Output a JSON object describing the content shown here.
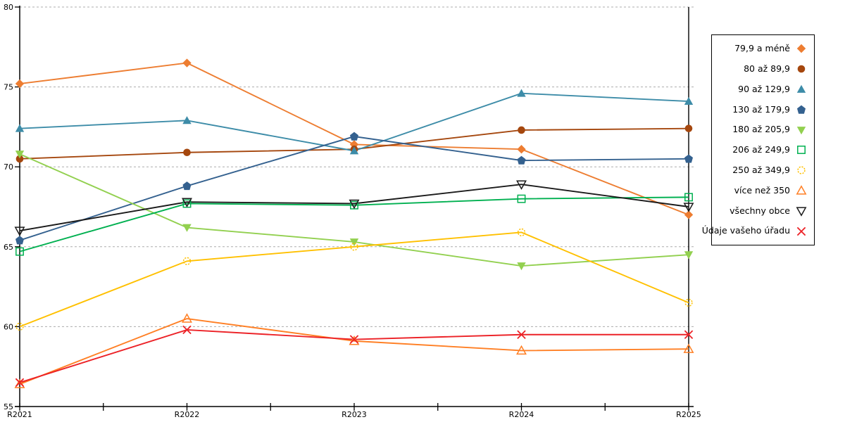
{
  "chart_data": {
    "type": "line",
    "title": "",
    "xlabel": "",
    "ylabel": "",
    "x": [
      "R2021",
      "R2022",
      "R2023",
      "R2024",
      "R2025"
    ],
    "ylim": [
      55,
      80
    ],
    "y_ticks": [
      55,
      60,
      65,
      70,
      75,
      80
    ],
    "grid": "horizontal dashed at 60,65,70,75,80",
    "legend_position": "right-box",
    "colors": {
      "axis": "#000000",
      "gridline": "#ADADAD",
      "background": "#FFFFFF"
    },
    "series": [
      {
        "name": "79,9 a méně",
        "color": "#ED7D31",
        "marker": "diamond",
        "filled": true,
        "dashed_marker": false,
        "values": [
          75.2,
          76.5,
          71.4,
          71.1,
          67.0
        ]
      },
      {
        "name": "80 až 89,9",
        "color": "#A5470E",
        "marker": "circle",
        "filled": true,
        "dashed_marker": false,
        "values": [
          70.5,
          70.9,
          71.1,
          72.3,
          72.4
        ]
      },
      {
        "name": "90 až 129,9",
        "color": "#3D8CA8",
        "marker": "triangle-up",
        "filled": true,
        "dashed_marker": false,
        "values": [
          72.4,
          72.9,
          71.0,
          74.6,
          74.1
        ]
      },
      {
        "name": "130 až 179,9",
        "color": "#34618F",
        "marker": "pentagon",
        "filled": true,
        "dashed_marker": false,
        "values": [
          65.4,
          68.8,
          71.9,
          70.4,
          70.5
        ]
      },
      {
        "name": "180 až 205,9",
        "color": "#92D04F",
        "marker": "triangle-down",
        "filled": true,
        "dashed_marker": false,
        "values": [
          70.8,
          66.2,
          65.3,
          63.8,
          64.5
        ]
      },
      {
        "name": "206 až 249,9",
        "color": "#00B050",
        "marker": "square",
        "filled": false,
        "dashed_marker": false,
        "values": [
          64.7,
          67.7,
          67.6,
          68.0,
          68.1
        ]
      },
      {
        "name": "250 až 349,9",
        "color": "#FFC000",
        "marker": "circle",
        "filled": false,
        "dashed_marker": true,
        "values": [
          60.0,
          64.1,
          65.0,
          65.9,
          61.5
        ]
      },
      {
        "name": "více než 350",
        "color": "#FF7F24",
        "marker": "triangle-up",
        "filled": false,
        "dashed_marker": false,
        "values": [
          56.4,
          60.5,
          59.1,
          58.5,
          58.6
        ]
      },
      {
        "name": "všechny obce",
        "color": "#1A1A1A",
        "marker": "triangle-down",
        "filled": false,
        "dashed_marker": false,
        "values": [
          66.0,
          67.8,
          67.7,
          68.9,
          67.5
        ]
      },
      {
        "name": "Údaje vašeho úřadu",
        "color": "#EC2227",
        "marker": "x",
        "filled": false,
        "dashed_marker": false,
        "values": [
          56.5,
          59.8,
          59.2,
          59.5,
          59.5
        ]
      }
    ]
  }
}
